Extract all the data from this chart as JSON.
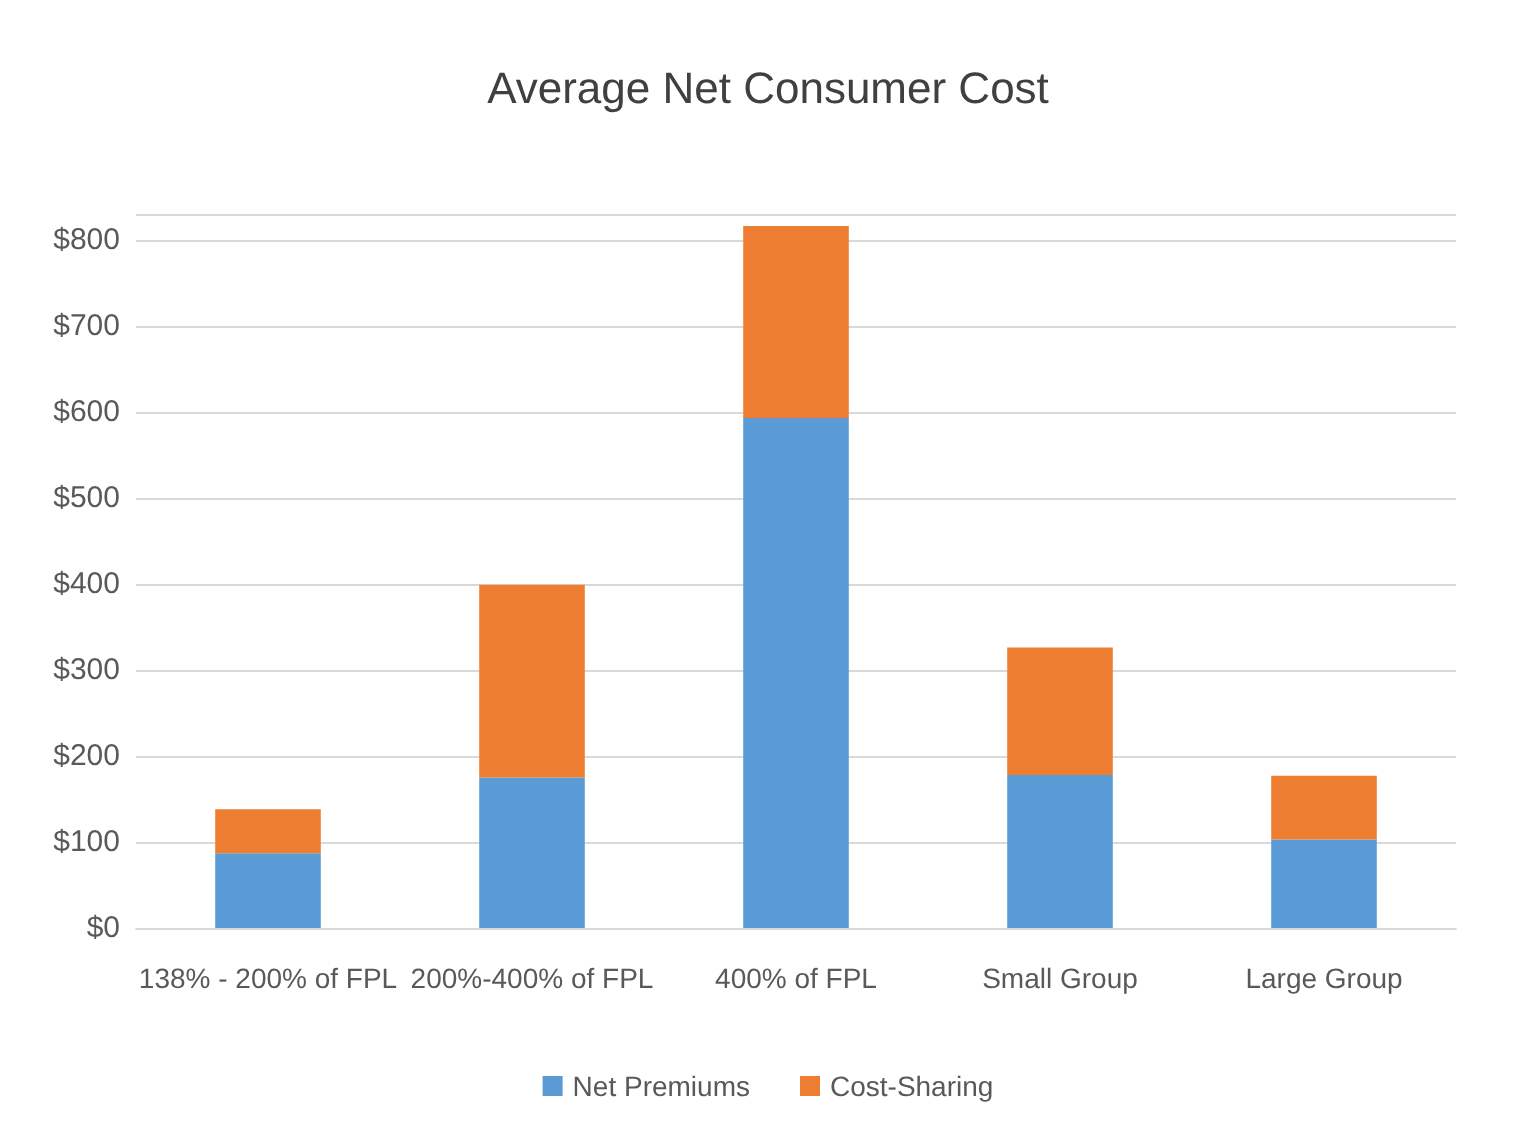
{
  "chart_data": {
    "type": "bar",
    "title": "Average Net Consumer Cost",
    "categories": [
      "138% - 200% of FPL",
      "200%-400% of FPL",
      "400% of FPL",
      "Small Group",
      "Large Group"
    ],
    "stacked": true,
    "series": [
      {
        "name": "Net Premiums",
        "color": "#5b9bd5",
        "values": [
          87,
          175,
          593,
          178,
          103
        ]
      },
      {
        "name": "Cost-Sharing",
        "color": "#ed7d31",
        "values": [
          51,
          224,
          223,
          148,
          74
        ]
      }
    ],
    "ylim": [
      0,
      830
    ],
    "yticks": [
      {
        "value": 0,
        "label": "$0"
      },
      {
        "value": 100,
        "label": "$100"
      },
      {
        "value": 200,
        "label": "$200"
      },
      {
        "value": 300,
        "label": "$300"
      },
      {
        "value": 400,
        "label": "$400"
      },
      {
        "value": 500,
        "label": "$500"
      },
      {
        "value": 600,
        "label": "$600"
      },
      {
        "value": 700,
        "label": "$700"
      },
      {
        "value": 800,
        "label": "$800"
      }
    ],
    "grid": "y",
    "legend": "bottom"
  }
}
